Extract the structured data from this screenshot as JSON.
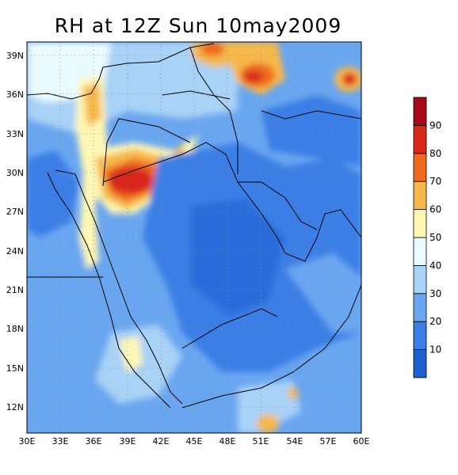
{
  "title": "RH at 12Z Sun 10may2009",
  "map": {
    "lon_ticks": [
      "30E",
      "33E",
      "36E",
      "39E",
      "42E",
      "45E",
      "48E",
      "51E",
      "54E",
      "57E",
      "60E"
    ],
    "lat_ticks": [
      "39N",
      "36N",
      "33N",
      "30N",
      "27N",
      "24N",
      "21N",
      "18N",
      "15N",
      "12N"
    ],
    "lon_range": [
      30,
      60
    ],
    "lat_range": [
      10,
      40
    ]
  },
  "colorbar": {
    "labels": [
      "10",
      "20",
      "30",
      "40",
      "50",
      "60",
      "70",
      "80",
      "90"
    ],
    "colors": [
      "#1f5fd0",
      "#3b7fe6",
      "#6aa6f0",
      "#a8d2f6",
      "#e9fbff",
      "#fff7b4",
      "#f6b84a",
      "#ef6a1e",
      "#d8281a",
      "#a8081a"
    ]
  }
}
